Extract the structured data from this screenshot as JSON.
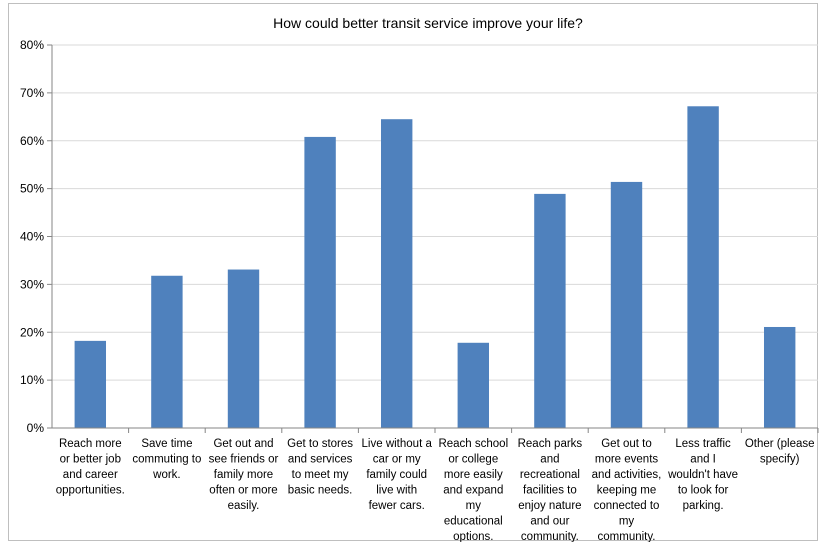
{
  "chart_data": {
    "type": "bar",
    "title": "How could better transit service improve your life?",
    "xlabel": "",
    "ylabel": "",
    "ylim": [
      0,
      0.8
    ],
    "yticks": [
      "0%",
      "10%",
      "20%",
      "30%",
      "40%",
      "50%",
      "60%",
      "70%",
      "80%"
    ],
    "grid": true,
    "legend": "none",
    "bar_color": "#4F81BD",
    "categories": [
      [
        "Reach more",
        "or better job",
        "and career",
        "opportunities."
      ],
      [
        "Save time",
        "commuting to",
        "work."
      ],
      [
        "Get out and",
        "see friends or",
        "family more",
        "often or more",
        "easily."
      ],
      [
        "Get to stores",
        "and services",
        "to meet my",
        "basic needs."
      ],
      [
        "Live without a",
        "car or my",
        "family could",
        "live with",
        "fewer cars."
      ],
      [
        "Reach school",
        "or college",
        "more easily",
        "and expand",
        "my",
        "educational",
        "options."
      ],
      [
        "Reach parks",
        "and",
        "recreational",
        "facilities to",
        "enjoy nature",
        "and our",
        "community."
      ],
      [
        "Get out to",
        "more events",
        "and activities,",
        "keeping me",
        "connected to",
        "my",
        "community."
      ],
      [
        "Less traffic",
        "and I",
        "wouldn't have",
        "to look for",
        "parking."
      ],
      [
        "Other (please",
        "specify)"
      ]
    ],
    "values": [
      0.182,
      0.318,
      0.331,
      0.608,
      0.645,
      0.178,
      0.489,
      0.514,
      0.672,
      0.211
    ]
  }
}
